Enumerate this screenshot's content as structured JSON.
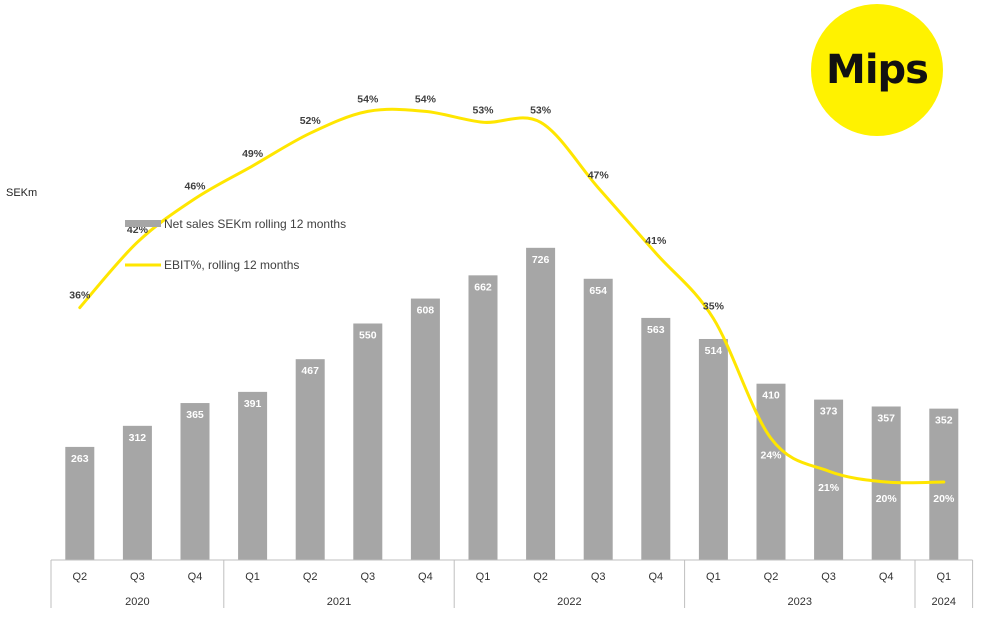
{
  "logo": {
    "text": "Mips"
  },
  "unit_label": "SEKm",
  "colors": {
    "bar": "#a6a6a6",
    "line": "#ffe600",
    "logo_bg": "#fff200"
  },
  "chart_data": {
    "type": "bar",
    "title": "",
    "ylabel": "SEKm",
    "ylim": [
      0,
      800
    ],
    "categories": [
      "Q2",
      "Q3",
      "Q4",
      "Q1",
      "Q2",
      "Q3",
      "Q4",
      "Q1",
      "Q2",
      "Q3",
      "Q4",
      "Q1",
      "Q2",
      "Q3",
      "Q4",
      "Q1"
    ],
    "years": [
      {
        "label": "2020",
        "count": 3
      },
      {
        "label": "2021",
        "count": 4
      },
      {
        "label": "2022",
        "count": 4
      },
      {
        "label": "2023",
        "count": 4
      },
      {
        "label": "2024",
        "count": 1
      }
    ],
    "legend": {
      "position": "top-left"
    },
    "series": [
      {
        "name": "Net sales SEKm rolling 12 months",
        "type": "bar",
        "values": [
          263,
          312,
          365,
          391,
          467,
          550,
          608,
          662,
          726,
          654,
          563,
          514,
          410,
          373,
          357,
          352
        ]
      },
      {
        "name": "EBIT%, rolling 12 months",
        "type": "line",
        "values": [
          36,
          42,
          46,
          49,
          52,
          54,
          54,
          53,
          53,
          47,
          41,
          35,
          24,
          21,
          20,
          20
        ],
        "labels": [
          "36%",
          "42%",
          "46%",
          "49%",
          "52%",
          "54%",
          "54%",
          "53%",
          "53%",
          "47%",
          "41%",
          "35%",
          "24%",
          "21%",
          "20%",
          "20%"
        ]
      }
    ]
  }
}
